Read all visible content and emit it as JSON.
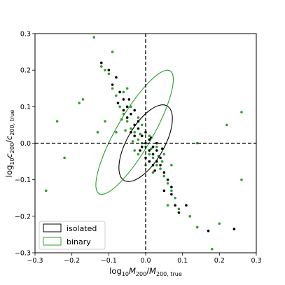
{
  "chart_data": {
    "type": "scatter",
    "xlim": [
      -0.3,
      0.3
    ],
    "ylim": [
      -0.3,
      0.3
    ],
    "xticks": [
      "−0.3",
      "−0.2",
      "−0.1",
      "0.0",
      "0.1",
      "0.2",
      "0.3"
    ],
    "yticks": [
      "−0.3",
      "−0.2",
      "−0.1",
      "0.0",
      "0.1",
      "0.2",
      "0.3"
    ],
    "xtick_values": [
      -0.3,
      -0.2,
      -0.1,
      0.0,
      0.1,
      0.2,
      0.3
    ],
    "ytick_values": [
      -0.3,
      -0.2,
      -0.1,
      0.0,
      0.1,
      0.2,
      0.3
    ],
    "xlabel": {
      "base": "log",
      "sub1": "10",
      "var": "M",
      "sub2": "200",
      "slash": "/",
      "var2": "M",
      "sub3": "200, true"
    },
    "ylabel": {
      "base": "log",
      "sub1": "10",
      "var": "c",
      "sub2": "200",
      "slash": "/",
      "var2": "c",
      "sub3": "200, true"
    },
    "reference_lines": {
      "x": 0.0,
      "y": 0.0,
      "style": "dashed"
    },
    "grid": false,
    "legend": {
      "placement": "lower-left"
    },
    "series": [
      {
        "name": "isolated",
        "color": "#000000",
        "ellipse": {
          "center": [
            0.0,
            0.0
          ],
          "extent_x": [
            -0.075,
            0.07
          ],
          "extent_y": [
            -0.1,
            0.11
          ],
          "angle_deg": -60
        },
        "points": [
          [
            -0.1,
            0.2
          ],
          [
            -0.08,
            0.18
          ],
          [
            -0.06,
            0.12
          ],
          [
            -0.05,
            0.1
          ],
          [
            -0.04,
            0.08
          ],
          [
            -0.03,
            0.05
          ],
          [
            -0.02,
            0.04
          ],
          [
            -0.01,
            0.02
          ],
          [
            0.0,
            0.0
          ],
          [
            0.01,
            -0.02
          ],
          [
            0.02,
            -0.03
          ],
          [
            0.03,
            -0.05
          ],
          [
            0.04,
            -0.06
          ],
          [
            0.05,
            -0.08
          ],
          [
            -0.07,
            0.14
          ],
          [
            -0.05,
            0.07
          ],
          [
            -0.03,
            0.09
          ],
          [
            -0.02,
            0.06
          ],
          [
            0.0,
            0.03
          ],
          [
            0.01,
            0.01
          ],
          [
            0.02,
            -0.01
          ],
          [
            0.03,
            -0.02
          ],
          [
            0.04,
            -0.04
          ],
          [
            0.02,
            -0.06
          ],
          [
            0.0,
            -0.04
          ],
          [
            -0.01,
            -0.01
          ],
          [
            -0.04,
            0.03
          ],
          [
            -0.06,
            0.09
          ],
          [
            -0.09,
            0.16
          ],
          [
            -0.12,
            0.22
          ],
          [
            0.06,
            -0.1
          ],
          [
            0.07,
            -0.14
          ],
          [
            0.08,
            -0.17
          ],
          [
            0.09,
            -0.19
          ],
          [
            0.11,
            -0.17
          ],
          [
            0.17,
            -0.24
          ],
          [
            0.24,
            -0.235
          ],
          [
            0.05,
            -0.13
          ],
          [
            0.07,
            -0.12
          ],
          [
            -0.045,
            0.12
          ],
          [
            0.03,
            0.0
          ],
          [
            0.045,
            -0.015
          ],
          [
            -0.015,
            -0.02
          ],
          [
            -0.075,
            0.11
          ],
          [
            0.01,
            -0.05
          ],
          [
            -0.03,
            0.02
          ],
          [
            0.015,
            0.015
          ],
          [
            0.025,
            -0.075
          ]
        ]
      },
      {
        "name": "binary",
        "color": "#2ca02c",
        "ellipse": {
          "center": [
            -0.03,
            0.03
          ],
          "extent_x": [
            -0.135,
            0.075
          ],
          "extent_y": [
            -0.14,
            0.2
          ],
          "angle_deg": -60
        },
        "points": [
          [
            -0.14,
            0.29
          ],
          [
            -0.27,
            -0.13
          ],
          [
            -0.22,
            -0.04
          ],
          [
            -0.24,
            0.06
          ],
          [
            -0.18,
            0.11
          ],
          [
            -0.17,
            0.12
          ],
          [
            -0.12,
            0.21
          ],
          [
            -0.11,
            0.2
          ],
          [
            -0.1,
            0.19
          ],
          [
            -0.09,
            0.15
          ],
          [
            -0.08,
            0.13
          ],
          [
            -0.07,
            0.1
          ],
          [
            -0.06,
            0.08
          ],
          [
            -0.05,
            0.06
          ],
          [
            -0.04,
            0.04
          ],
          [
            -0.03,
            0.03
          ],
          [
            -0.02,
            0.01
          ],
          [
            -0.01,
            0.0
          ],
          [
            0.0,
            -0.01
          ],
          [
            0.01,
            -0.03
          ],
          [
            0.02,
            -0.04
          ],
          [
            0.03,
            -0.06
          ],
          [
            0.04,
            -0.07
          ],
          [
            0.05,
            -0.09
          ],
          [
            0.06,
            -0.11
          ],
          [
            0.07,
            -0.13
          ],
          [
            0.08,
            -0.15
          ],
          [
            0.09,
            -0.18
          ],
          [
            0.12,
            -0.2
          ],
          [
            0.14,
            -0.23
          ],
          [
            0.2,
            -0.22
          ],
          [
            0.18,
            -0.29
          ],
          [
            0.26,
            -0.1
          ],
          [
            0.26,
            0.085
          ],
          [
            0.22,
            0.05
          ],
          [
            0.14,
            0.0
          ],
          [
            -0.08,
            0.03
          ],
          [
            -0.11,
            0.06
          ],
          [
            -0.13,
            0.03
          ],
          [
            -0.06,
            0.14
          ],
          [
            -0.04,
            0.1
          ],
          [
            -0.02,
            0.07
          ],
          [
            -0.01,
            0.05
          ],
          [
            0.01,
            0.02
          ],
          [
            0.03,
            -0.01
          ],
          [
            0.05,
            -0.03
          ],
          [
            0.07,
            -0.06
          ],
          [
            -0.09,
            0.25
          ],
          [
            -0.02,
            -0.03
          ],
          [
            0.0,
            -0.06
          ],
          [
            0.02,
            -0.08
          ],
          [
            -0.035,
            0.005
          ],
          [
            -0.055,
            0.035
          ],
          [
            0.015,
            -0.015
          ],
          [
            0.035,
            -0.035
          ],
          [
            -0.065,
            0.065
          ],
          [
            -0.015,
            0.025
          ],
          [
            0.045,
            -0.05
          ],
          [
            -0.05,
            0.15
          ],
          [
            -0.03,
            -0.02
          ],
          [
            0.06,
            -0.17
          ]
        ]
      }
    ]
  }
}
